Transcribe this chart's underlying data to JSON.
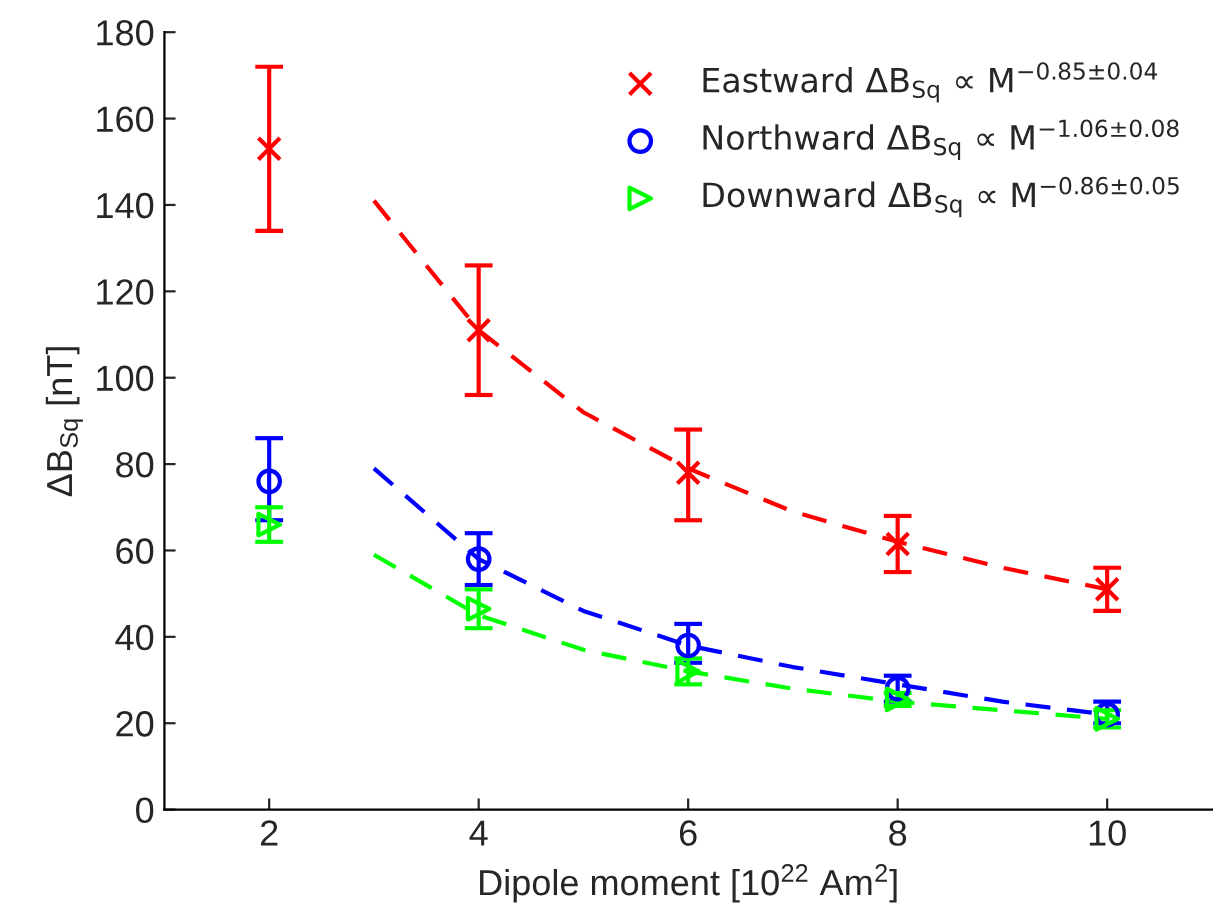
{
  "chart_data": {
    "type": "scatter",
    "xlabel": "Dipole moment [10$^{22}$ Am$^{2}$]",
    "ylabel": "ΔB$_{Sq}$ [nT]",
    "xlim": [
      1,
      11
    ],
    "xticks": [
      2,
      4,
      6,
      8,
      10
    ],
    "ylim": [
      0,
      180
    ],
    "yticks": [
      0,
      20,
      40,
      60,
      80,
      100,
      120,
      140,
      160,
      180
    ],
    "grid": false,
    "legend": "top right",
    "series": [
      {
        "name": "Eastward ΔB$_{Sq}$ ∝ M$^{−0.85±0.04}$",
        "marker": "cross",
        "color": "#ff0000",
        "x": [
          2,
          4,
          6,
          8,
          10
        ],
        "values": [
          153,
          111,
          78,
          61.5,
          51
        ],
        "errors": [
          [
            134,
            172
          ],
          [
            96,
            126
          ],
          [
            67,
            88
          ],
          [
            55,
            68
          ],
          [
            46,
            56
          ]
        ]
      },
      {
        "name": "Northward ΔB$_{Sq}$ ∝ M$^{−1.06±0.08}$",
        "marker": "circle",
        "color": "#0000ff",
        "x": [
          2,
          4,
          6,
          8,
          10
        ],
        "values": [
          76,
          58,
          38,
          28,
          22
        ],
        "errors": [
          [
            67,
            86
          ],
          [
            52,
            64
          ],
          [
            34,
            43
          ],
          [
            25,
            31
          ],
          [
            20,
            25
          ]
        ]
      },
      {
        "name": "Downward ΔB$_{Sq}$ ∝ M$^{−0.86±0.05}$",
        "marker": "triangle",
        "color": "#00ff00",
        "x": [
          2,
          4,
          6,
          8,
          10
        ],
        "values": [
          66,
          46.5,
          32,
          25.5,
          21
        ],
        "errors": [
          [
            62,
            70
          ],
          [
            42,
            51
          ],
          [
            29,
            35
          ],
          [
            24,
            27
          ],
          [
            19,
            23
          ]
        ]
      },
      {
        "type": "line",
        "line_style": "dashed",
        "color": "#ff0000",
        "x": [
          3,
          4,
          5,
          6,
          7,
          8,
          9,
          10
        ],
        "values": [
          141,
          111,
          92,
          79,
          69,
          62,
          56,
          51
        ]
      },
      {
        "type": "line",
        "line_style": "dashed",
        "color": "#0000ff",
        "x": [
          3,
          4,
          5,
          6,
          7,
          8,
          9,
          10
        ],
        "values": [
          79,
          58,
          46,
          38,
          33,
          29,
          25,
          22
        ]
      },
      {
        "type": "line",
        "line_style": "dashed",
        "color": "#00ff00",
        "x": [
          3,
          4,
          5,
          6,
          7,
          8,
          9,
          10
        ],
        "values": [
          59,
          45,
          37,
          32,
          28,
          25,
          23,
          21
        ]
      }
    ]
  }
}
